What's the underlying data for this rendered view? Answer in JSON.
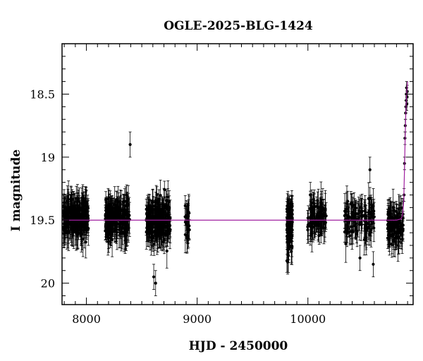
{
  "chart_data": {
    "type": "scatter",
    "title": "OGLE-2025-BLG-1424",
    "xlabel": "HJD - 2450000",
    "ylabel": "I magnitude",
    "xlim": [
      7780,
      10950
    ],
    "ylim": [
      20.17,
      18.1
    ],
    "y_inverted": true,
    "x_ticks": [
      8000,
      9000,
      10000
    ],
    "y_ticks": [
      18.5,
      19,
      19.5,
      20
    ],
    "x_tick_labels": [
      "8000",
      "9000",
      "10000"
    ],
    "y_tick_labels": [
      "18.5",
      "19",
      "19.5",
      "20"
    ],
    "grid": false,
    "legend": "none",
    "colors": {
      "points": "#000000",
      "model": "#a020a0"
    },
    "observing_seasons": [
      {
        "start": 7790,
        "end": 8020,
        "median_mag": 19.48,
        "scatter": 0.1,
        "n_points": 220
      },
      {
        "start": 8170,
        "end": 8390,
        "median_mag": 19.49,
        "scatter": 0.1,
        "n_points": 200
      },
      {
        "start": 8540,
        "end": 8760,
        "median_mag": 19.5,
        "scatter": 0.11,
        "n_points": 210
      },
      {
        "start": 8890,
        "end": 8930,
        "median_mag": 19.52,
        "scatter": 0.1,
        "n_points": 25
      },
      {
        "start": 9810,
        "end": 9860,
        "median_mag": 19.55,
        "scatter": 0.15,
        "n_points": 120
      },
      {
        "start": 9990,
        "end": 10170,
        "median_mag": 19.47,
        "scatter": 0.1,
        "n_points": 90
      },
      {
        "start": 10330,
        "end": 10600,
        "median_mag": 19.49,
        "scatter": 0.1,
        "n_points": 120
      },
      {
        "start": 10720,
        "end": 10860,
        "median_mag": 19.55,
        "scatter": 0.1,
        "n_points": 110
      }
    ],
    "rising_points": [
      {
        "x": 10868,
        "y": 19.3
      },
      {
        "x": 10872,
        "y": 19.05
      },
      {
        "x": 10876,
        "y": 18.85
      },
      {
        "x": 10879,
        "y": 18.75
      },
      {
        "x": 10882,
        "y": 18.65
      },
      {
        "x": 10885,
        "y": 18.6
      },
      {
        "x": 10887,
        "y": 18.55
      },
      {
        "x": 10889,
        "y": 18.5
      },
      {
        "x": 10891,
        "y": 18.45
      },
      {
        "x": 10893,
        "y": 18.58
      },
      {
        "x": 10895,
        "y": 18.52
      },
      {
        "x": 10897,
        "y": 18.48
      }
    ],
    "outliers": [
      {
        "x": 8395,
        "y": 18.9
      },
      {
        "x": 8608,
        "y": 19.95
      },
      {
        "x": 8625,
        "y": 20.0
      },
      {
        "x": 9850,
        "y": 19.75
      },
      {
        "x": 10470,
        "y": 19.8
      },
      {
        "x": 10590,
        "y": 19.85
      },
      {
        "x": 10560,
        "y": 19.1
      },
      {
        "x": 10022,
        "y": 19.3
      }
    ],
    "model_curve": {
      "name": "",
      "baseline_mag": 19.5,
      "points": [
        {
          "x": 7780,
          "y": 19.5
        },
        {
          "x": 10800,
          "y": 19.5
        },
        {
          "x": 10840,
          "y": 19.49
        },
        {
          "x": 10855,
          "y": 19.46
        },
        {
          "x": 10865,
          "y": 19.35
        },
        {
          "x": 10872,
          "y": 19.1
        },
        {
          "x": 10878,
          "y": 18.85
        },
        {
          "x": 10884,
          "y": 18.65
        },
        {
          "x": 10890,
          "y": 18.52
        },
        {
          "x": 10895,
          "y": 18.45
        },
        {
          "x": 10900,
          "y": 18.4
        }
      ]
    }
  }
}
